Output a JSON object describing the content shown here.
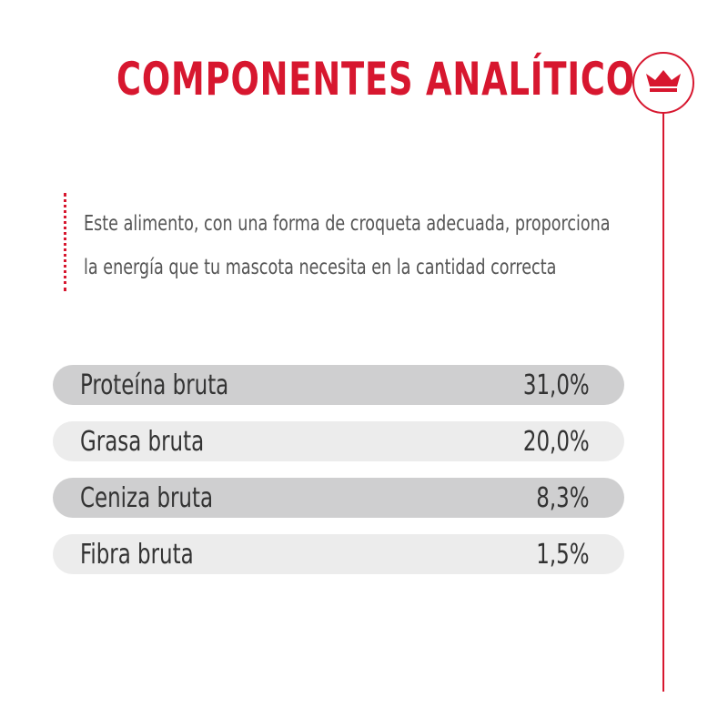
{
  "header": {
    "title": "COMPONENTES ANALÍTICOS"
  },
  "description": {
    "lines": [
      "Este alimento, con una forma de croqueta adecuada, proporciona",
      "la energía que tu mascota necesita en la cantidad correcta"
    ]
  },
  "table": {
    "rows": [
      [
        "Proteína bruta",
        "31,0%"
      ],
      [
        "Grasa bruta",
        "20,0%"
      ],
      [
        "Ceniza bruta",
        "8,3%"
      ],
      [
        "Fibra bruta",
        "1,5%"
      ]
    ]
  }
}
